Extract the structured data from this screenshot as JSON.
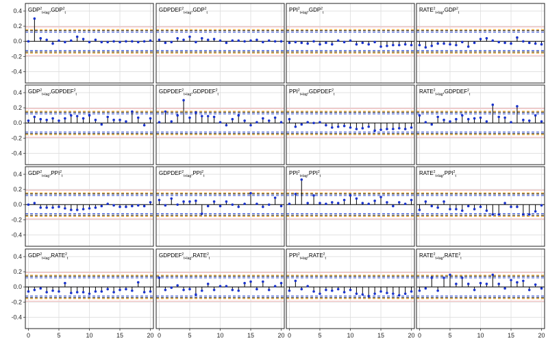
{
  "chart_data": {
    "type": "stem",
    "ylim": [
      -0.55,
      0.5
    ],
    "xlim": [
      -0.5,
      20.5
    ],
    "yticks": [
      -0.4,
      -0.2,
      0.0,
      0.2,
      0.4
    ],
    "ytick_labels": [
      "-0.4",
      "-0.2",
      "0.0",
      "0.2",
      "0.4"
    ],
    "xticks": [
      0,
      5,
      10,
      15,
      20
    ],
    "xtick_labels": [
      "0",
      "5",
      "10",
      "15",
      "20"
    ],
    "grid": true,
    "bands": [
      {
        "value": 0.14,
        "color": "#000000",
        "style": "dashed"
      },
      {
        "value": -0.14,
        "color": "#000000",
        "style": "dashed"
      },
      {
        "value": 0.155,
        "color": "#e69500",
        "style": "dashed"
      },
      {
        "value": -0.155,
        "color": "#e69500",
        "style": "dashed"
      },
      {
        "value": 0.12,
        "color": "#1f3fd1",
        "style": "dashed"
      },
      {
        "value": -0.12,
        "color": "#1f3fd1",
        "style": "dashed"
      },
      {
        "value": 0.19,
        "color": "#f3c6c6",
        "style": "solid"
      },
      {
        "value": -0.19,
        "color": "#f3c6c6",
        "style": "solid"
      }
    ],
    "colors": {
      "stem": "#000000",
      "point": "#1a33cc",
      "grid": "#dddddd",
      "frame": "#222222"
    },
    "panels": [
      {
        "title": {
          "v1": "GDP",
          "sub1": "t+lag",
          "v2": "GDP",
          "sub2": "t"
        },
        "values": [
          0.0,
          0.3,
          0.04,
          0.02,
          -0.03,
          0.01,
          -0.01,
          0.01,
          0.06,
          0.03,
          -0.01,
          0.02,
          -0.01,
          -0.01,
          0.0,
          -0.01,
          0.0,
          0.0,
          -0.01,
          0.0,
          0.01
        ]
      },
      {
        "title": {
          "v1": "GDPDEF",
          "sub1": "t+lag",
          "v2": "GDP",
          "sub2": "t"
        },
        "values": [
          0.02,
          -0.02,
          -0.01,
          0.04,
          0.02,
          0.06,
          -0.01,
          0.04,
          0.02,
          0.03,
          0.01,
          -0.02,
          0.01,
          0.01,
          0.0,
          0.01,
          0.02,
          -0.01,
          0.01,
          0.0,
          0.0
        ]
      },
      {
        "title": {
          "v1": "PPI",
          "sub1": "t+lag",
          "v2": "GDP",
          "sub2": "t"
        },
        "values": [
          -0.02,
          -0.01,
          -0.02,
          -0.03,
          0.0,
          -0.04,
          -0.02,
          -0.04,
          0.01,
          -0.01,
          0.01,
          -0.04,
          -0.02,
          -0.04,
          -0.01,
          -0.07,
          -0.06,
          -0.05,
          -0.05,
          -0.04,
          -0.05
        ]
      },
      {
        "title": {
          "v1": "RATE",
          "sub1": "t+lag",
          "v2": "GDP",
          "sub2": "t"
        },
        "values": [
          -0.05,
          -0.08,
          -0.06,
          -0.03,
          -0.03,
          -0.04,
          -0.05,
          -0.01,
          -0.07,
          -0.02,
          0.03,
          0.04,
          0.01,
          -0.01,
          -0.02,
          -0.03,
          0.05,
          0.0,
          -0.02,
          -0.03,
          -0.04
        ]
      },
      {
        "title": {
          "v1": "GDP",
          "sub1": "t+lag",
          "v2": "GDPDEF",
          "sub2": "t"
        },
        "values": [
          0.03,
          0.08,
          0.05,
          0.04,
          0.06,
          0.03,
          0.06,
          0.1,
          0.09,
          0.06,
          0.1,
          0.04,
          -0.02,
          0.08,
          0.04,
          0.04,
          0.02,
          0.15,
          0.07,
          -0.03,
          0.06
        ]
      },
      {
        "title": {
          "v1": "GDPDEF",
          "sub1": "t+lag",
          "v2": "GDPDEF",
          "sub2": "t"
        },
        "values": [
          0.01,
          0.15,
          0.02,
          0.1,
          0.3,
          0.07,
          0.14,
          0.09,
          0.09,
          0.08,
          0.01,
          -0.03,
          0.05,
          0.1,
          0.03,
          -0.03,
          0.01,
          0.06,
          0.03,
          0.07,
          0.01
        ]
      },
      {
        "title": {
          "v1": "PPI",
          "sub1": "t+lag",
          "v2": "GDPDEF",
          "sub2": "t"
        },
        "values": [
          0.05,
          -0.05,
          -0.02,
          0.01,
          0.0,
          0.01,
          -0.03,
          -0.06,
          -0.05,
          -0.04,
          -0.06,
          -0.08,
          -0.07,
          -0.05,
          -0.1,
          -0.09,
          -0.08,
          -0.08,
          -0.07,
          -0.08,
          -0.06
        ]
      },
      {
        "title": {
          "v1": "RATE",
          "sub1": "t+lag",
          "v2": "GDPDEF",
          "sub2": "t"
        },
        "values": [
          0.1,
          0.01,
          -0.02,
          0.08,
          0.04,
          0.02,
          0.05,
          0.1,
          0.05,
          0.06,
          0.07,
          0.02,
          0.24,
          0.08,
          0.07,
          0.01,
          0.22,
          0.04,
          0.03,
          0.1,
          0.02
        ]
      },
      {
        "title": {
          "v1": "GDP",
          "sub1": "t+lag",
          "v2": "PPI",
          "sub2": "t"
        },
        "values": [
          0.0,
          0.02,
          -0.04,
          -0.04,
          -0.04,
          -0.03,
          -0.05,
          -0.07,
          -0.07,
          -0.06,
          -0.05,
          -0.04,
          -0.02,
          0.01,
          -0.01,
          -0.03,
          -0.03,
          -0.02,
          -0.01,
          -0.02,
          0.03
        ]
      },
      {
        "title": {
          "v1": "GDPDEF",
          "sub1": "t+lag",
          "v2": "PPI",
          "sub2": "t"
        },
        "values": [
          0.06,
          -0.01,
          0.08,
          0.0,
          0.04,
          0.04,
          0.05,
          -0.12,
          -0.02,
          0.04,
          -0.02,
          0.04,
          0.0,
          -0.03,
          0.01,
          0.15,
          0.01,
          -0.03,
          0.0,
          0.09,
          -0.02
        ]
      },
      {
        "title": {
          "v1": "PPI",
          "sub1": "t+lag",
          "v2": "PPI",
          "sub2": "t"
        },
        "values": [
          0.01,
          0.14,
          0.33,
          0.02,
          0.12,
          0.02,
          0.01,
          0.03,
          0.02,
          0.06,
          0.12,
          0.08,
          0.02,
          0.01,
          0.05,
          0.1,
          0.03,
          -0.02,
          0.03,
          0.01,
          0.06
        ]
      },
      {
        "title": {
          "v1": "RATE",
          "sub1": "t+lag",
          "v2": "PPI",
          "sub2": "t"
        },
        "values": [
          -0.07,
          0.04,
          -0.02,
          -0.04,
          0.04,
          -0.06,
          -0.06,
          -0.08,
          -0.02,
          -0.06,
          -0.03,
          -0.08,
          -0.13,
          -0.13,
          0.02,
          -0.03,
          -0.03,
          -0.13,
          -0.13,
          -0.09,
          -0.01
        ]
      },
      {
        "title": {
          "v1": "GDP",
          "sub1": "t+lag",
          "v2": "RATE",
          "sub2": "t"
        },
        "values": [
          -0.06,
          -0.04,
          -0.02,
          -0.07,
          -0.05,
          -0.06,
          0.05,
          -0.08,
          -0.07,
          -0.07,
          -0.09,
          -0.06,
          -0.06,
          -0.03,
          -0.07,
          -0.04,
          -0.03,
          -0.05,
          0.06,
          -0.07,
          -0.06
        ]
      },
      {
        "title": {
          "v1": "GDPDEF",
          "sub1": "t+lag",
          "v2": "RATE",
          "sub2": "t"
        },
        "values": [
          0.12,
          -0.04,
          -0.01,
          0.02,
          -0.04,
          -0.03,
          -0.1,
          -0.05,
          0.04,
          -0.04,
          0.01,
          0.01,
          -0.04,
          -0.05,
          0.05,
          0.07,
          -0.03,
          0.07,
          -0.04,
          0.01,
          0.05
        ]
      },
      {
        "title": {
          "v1": "PPI",
          "sub1": "t+lag",
          "v2": "RATE",
          "sub2": "t"
        },
        "values": [
          -0.05,
          0.08,
          -0.03,
          0.01,
          -0.06,
          -0.09,
          -0.04,
          -0.05,
          -0.03,
          -0.07,
          -0.04,
          -0.09,
          -0.1,
          -0.12,
          -0.09,
          -0.06,
          -0.08,
          -0.09,
          -0.11,
          -0.09,
          -0.06
        ]
      },
      {
        "title": {
          "v1": "RATE",
          "sub1": "t+lag",
          "v2": "RATE",
          "sub2": "t"
        },
        "values": [
          -0.05,
          -0.02,
          0.12,
          -0.05,
          0.12,
          0.16,
          0.04,
          0.12,
          0.04,
          -0.04,
          0.05,
          0.04,
          0.16,
          0.04,
          -0.02,
          0.09,
          0.06,
          0.08,
          -0.04,
          0.03,
          -0.02
        ]
      }
    ]
  }
}
